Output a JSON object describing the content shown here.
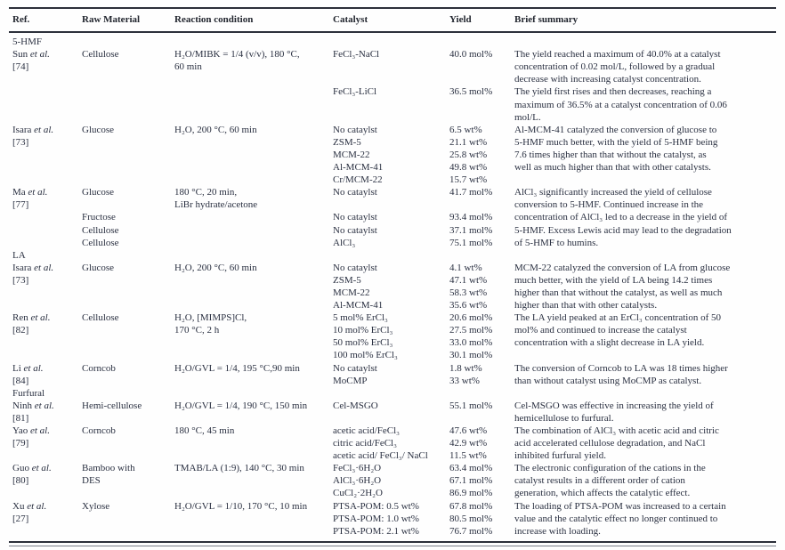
{
  "header": {
    "columns": [
      "Ref.",
      "Raw Material",
      "Reaction condition",
      "Catalyst",
      "Yield",
      "Brief summary"
    ]
  },
  "colors": {
    "text": "#2a3041",
    "rule": "#2c303a",
    "background": "#fefefe"
  },
  "sections": [
    {
      "label": "5-HMF",
      "groups": [
        {
          "ref_name": "Sun",
          "ref_etal": "et al.",
          "ref_id": "[74]",
          "raw_material": [
            "Cellulose"
          ],
          "condition": [
            "H₂O/MIBK = 1/4 (v/v), 180 °C,",
            "60 min"
          ],
          "catalysts": [
            "FeCl₃-NaCl",
            "",
            "",
            "FeCl₃-LiCl"
          ],
          "yields": [
            "40.0 mol%",
            "",
            "",
            "36.5 mol%"
          ],
          "summary": [
            "The yield reached a maximum of 40.0% at a catalyst",
            "concentration of 0.02 mol/L, followed by a gradual",
            "decrease with increasing catalyst concentration.",
            "The yield first rises and then decreases, reaching a",
            "maximum of 36.5% at a catalyst concentration of 0.06",
            "mol/L."
          ]
        },
        {
          "ref_name": "Isara",
          "ref_etal": "et al.",
          "ref_id": "[73]",
          "raw_material": [
            "Glucose"
          ],
          "condition": [
            "H₂O, 200 °C, 60 min"
          ],
          "catalysts": [
            "No cataylst",
            "ZSM-5",
            "MCM-22",
            "Al-MCM-41",
            "Cr/MCM-22"
          ],
          "yields": [
            "6.5 wt%",
            "21.1 wt%",
            "25.8 wt%",
            "49.8 wt%",
            "15.7 wt%"
          ],
          "summary": [
            "Al-MCM-41 catalyzed the conversion of glucose to",
            "5-HMF much better, with the yield of 5-HMF being",
            "7.6 times higher than that without the catalyst, as",
            "well as much higher than that with other catalysts."
          ]
        },
        {
          "ref_name": "Ma",
          "ref_etal": "et al.",
          "ref_id": "[77]",
          "raw_material": [
            "Glucose",
            "",
            "Fructose",
            "Cellulose",
            "Cellulose"
          ],
          "condition": [
            "180 °C, 20 min,",
            "LiBr hydrate/acetone"
          ],
          "catalysts": [
            "No cataylst",
            "",
            "No cataylst",
            "No cataylst",
            "AlCl₃"
          ],
          "yields": [
            "41.7 mol%",
            "",
            "93.4 mol%",
            "37.1 mol%",
            "75.1 mol%"
          ],
          "summary": [
            "AlCl₃ significantly increased the yield of cellulose",
            "conversion to 5-HMF. Continued increase in the",
            "concentration of AlCl₃ led to a decrease in the yield of",
            "5-HMF. Excess Lewis acid may lead to the degradation",
            "of 5-HMF to humins."
          ]
        }
      ]
    },
    {
      "label": "LA",
      "groups": [
        {
          "ref_name": "Isara",
          "ref_etal": "et al.",
          "ref_id": "[73]",
          "raw_material": [
            "Glucose"
          ],
          "condition": [
            "H₂O, 200 °C, 60 min"
          ],
          "catalysts": [
            "No cataylst",
            "ZSM-5",
            "MCM-22",
            "Al-MCM-41"
          ],
          "yields": [
            "4.1 wt%",
            "47.1 wt%",
            "58.3 wt%",
            "35.6 wt%"
          ],
          "summary": [
            "MCM-22 catalyzed the conversion of LA from glucose",
            "much better, with the yield of LA being 14.2 times",
            "higher than that without the catalyst, as well as much",
            "higher than that with other catalysts."
          ]
        },
        {
          "ref_name": "Ren",
          "ref_etal": "et al.",
          "ref_id": "[82]",
          "raw_material": [
            "Cellulose"
          ],
          "condition": [
            "H₂O, [MIMPS]Cl,",
            "170 °C, 2 h"
          ],
          "catalysts": [
            "5 mol% ErCl₃",
            "10 mol% ErCl₃",
            "50 mol% ErCl₃",
            "100 mol% ErCl₃"
          ],
          "yields": [
            "20.6 mol%",
            "27.5 mol%",
            "33.0 mol%",
            "30.1 mol%"
          ],
          "summary": [
            "The LA yield peaked at an ErCl₃ concentration of 50",
            "mol% and continued to increase the catalyst",
            "concentration with a slight decrease in LA yield."
          ]
        },
        {
          "ref_name": "Li",
          "ref_etal": "et al.",
          "ref_id": "[84]",
          "raw_material": [
            "Corncob"
          ],
          "condition": [
            "H₂O/GVL = 1/4, 195 °C,90 min"
          ],
          "catalysts": [
            "No cataylst",
            "MoCMP"
          ],
          "yields": [
            "1.8 wt%",
            "33 wt%"
          ],
          "summary": [
            "The conversion of Corncob to LA was 18 times higher",
            "than without catalyst using MoCMP as catalyst."
          ]
        }
      ]
    },
    {
      "label": "Furfural",
      "groups": [
        {
          "ref_name": "Ninh",
          "ref_etal": "et al.",
          "ref_id": "[81]",
          "raw_material": [
            "Hemi-cellulose"
          ],
          "condition": [
            "H₂O/GVL = 1/4, 190 °C, 150 min"
          ],
          "catalysts": [
            "Cel-MSGO"
          ],
          "yields": [
            "55.1 mol%"
          ],
          "summary": [
            "Cel-MSGO was effective in increasing the yield of",
            "hemicellulose to furfural."
          ]
        },
        {
          "ref_name": "Yao",
          "ref_etal": "et al.",
          "ref_id": "[79]",
          "raw_material": [
            "Corncob"
          ],
          "condition": [
            "180 °C, 45 min"
          ],
          "catalysts": [
            "acetic acid/FeCl₃",
            "citric acid/FeCl₃",
            "acetic acid/ FeCl₃/ NaCl"
          ],
          "yields": [
            "47.6 wt%",
            "42.9 wt%",
            "11.5 wt%"
          ],
          "summary": [
            "The combination of AlCl₃ with acetic acid and citric",
            "acid accelerated cellulose degradation, and NaCl",
            "inhibited furfural yield."
          ]
        },
        {
          "ref_name": "Guo",
          "ref_etal": "et al.",
          "ref_id": "[80]",
          "raw_material": [
            "Bamboo with",
            "DES"
          ],
          "condition": [
            "TMAB/LA (1:9), 140 °C, 30 min"
          ],
          "catalysts": [
            "FeCl₃·6H₂O",
            "AlCl₃·6H₂O",
            "CuCl₂·2H₂O"
          ],
          "yields": [
            "63.4 mol%",
            "67.1 mol%",
            "86.9 mol%"
          ],
          "summary": [
            "The electronic configuration of the cations in the",
            "catalyst results in a different order of cation",
            "generation, which affects the catalytic effect."
          ]
        },
        {
          "ref_name": "Xu",
          "ref_etal": "et al.",
          "ref_id": "[27]",
          "raw_material": [
            "Xylose"
          ],
          "condition": [
            "H₂O/GVL = 1/10, 170 °C, 10 min"
          ],
          "catalysts": [
            "PTSA-POM: 0.5 wt%",
            "PTSA-POM: 1.0 wt%",
            "PTSA-POM: 2.1 wt%"
          ],
          "yields": [
            "67.8 mol%",
            "80.5 mol%",
            "76.7 mol%"
          ],
          "summary": [
            "The loading of PTSA-POM was increased to a certain",
            "value and the catalytic effect no longer continued to",
            "increase with loading."
          ]
        }
      ]
    }
  ]
}
